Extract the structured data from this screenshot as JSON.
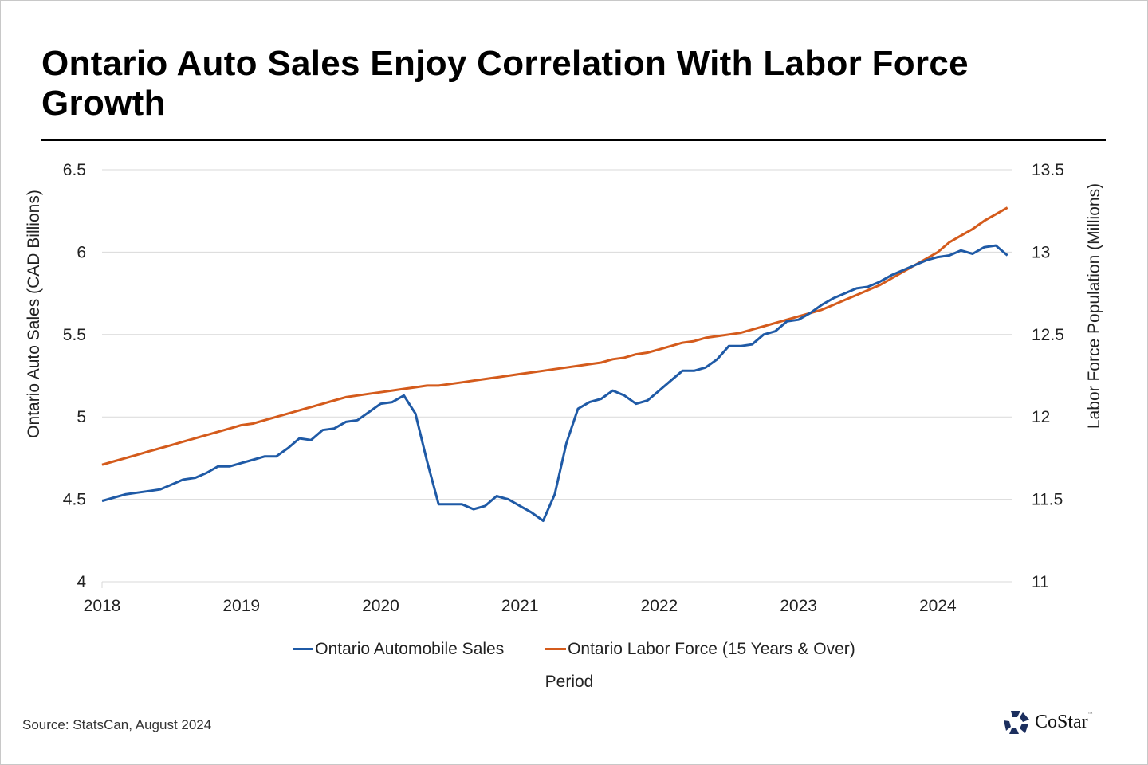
{
  "header": {
    "title": "Ontario Auto Sales Enjoy Correlation With Labor Force Growth"
  },
  "footer": {
    "source": "Source: StatsCan, August 2024",
    "logo_text": "CoStar",
    "logo_tm": "™",
    "logo_icon": "costar-star-icon"
  },
  "colors": {
    "auto_sales": "#1f5aa6",
    "labor_force": "#d45b1c",
    "grid": "#d9d9d9"
  },
  "chart_data": {
    "type": "line",
    "title": "Ontario Auto Sales Enjoy Correlation With Labor Force Growth",
    "xlabel": "Period",
    "ylabel": "Ontario Auto Sales (CAD Billions)",
    "y2label": "Labor Force Population (Millions)",
    "x_start": "2018-01",
    "x_frequency": "monthly",
    "x_ticks": [
      "2018",
      "2019",
      "2020",
      "2021",
      "2022",
      "2023",
      "2024"
    ],
    "ylim": [
      4,
      6.5
    ],
    "y_ticks": [
      "4",
      "4.5",
      "5",
      "5.5",
      "6",
      "6.5"
    ],
    "y2lim": [
      11,
      13.5
    ],
    "y2_ticks": [
      "11",
      "11.5",
      "12",
      "12.5",
      "13",
      "13.5"
    ],
    "grid": true,
    "legend_position": "bottom",
    "series": [
      {
        "name": "Ontario Automobile Sales",
        "axis": "left",
        "values": [
          4.49,
          4.51,
          4.53,
          4.54,
          4.55,
          4.56,
          4.59,
          4.62,
          4.63,
          4.66,
          4.7,
          4.7,
          4.72,
          4.74,
          4.76,
          4.76,
          4.81,
          4.87,
          4.86,
          4.92,
          4.93,
          4.97,
          4.98,
          5.03,
          5.08,
          5.09,
          5.13,
          5.02,
          4.73,
          4.47,
          4.47,
          4.47,
          4.44,
          4.46,
          4.52,
          4.5,
          4.46,
          4.42,
          4.37,
          4.53,
          4.84,
          5.05,
          5.09,
          5.11,
          5.16,
          5.13,
          5.08,
          5.1,
          5.16,
          5.22,
          5.28,
          5.28,
          5.3,
          5.35,
          5.43,
          5.43,
          5.44,
          5.5,
          5.52,
          5.58,
          5.59,
          5.63,
          5.68,
          5.72,
          5.75,
          5.78,
          5.79,
          5.82,
          5.86,
          5.89,
          5.92,
          5.95,
          5.97,
          5.98,
          6.01,
          5.99,
          6.03,
          6.04,
          5.98
        ]
      },
      {
        "name": "Ontario Labor Force (15 Years & Over)",
        "axis": "right",
        "values": [
          11.71,
          11.73,
          11.75,
          11.77,
          11.79,
          11.81,
          11.83,
          11.85,
          11.87,
          11.89,
          11.91,
          11.93,
          11.95,
          11.96,
          11.98,
          12.0,
          12.02,
          12.04,
          12.06,
          12.08,
          12.1,
          12.12,
          12.13,
          12.14,
          12.15,
          12.16,
          12.17,
          12.18,
          12.19,
          12.19,
          12.2,
          12.21,
          12.22,
          12.23,
          12.24,
          12.25,
          12.26,
          12.27,
          12.28,
          12.29,
          12.3,
          12.31,
          12.32,
          12.33,
          12.35,
          12.36,
          12.38,
          12.39,
          12.41,
          12.43,
          12.45,
          12.46,
          12.48,
          12.49,
          12.5,
          12.51,
          12.53,
          12.55,
          12.57,
          12.59,
          12.61,
          12.63,
          12.65,
          12.68,
          12.71,
          12.74,
          12.77,
          12.8,
          12.84,
          12.88,
          12.92,
          12.96,
          13.0,
          13.06,
          13.1,
          13.14,
          13.19,
          13.23,
          13.27
        ]
      }
    ]
  }
}
